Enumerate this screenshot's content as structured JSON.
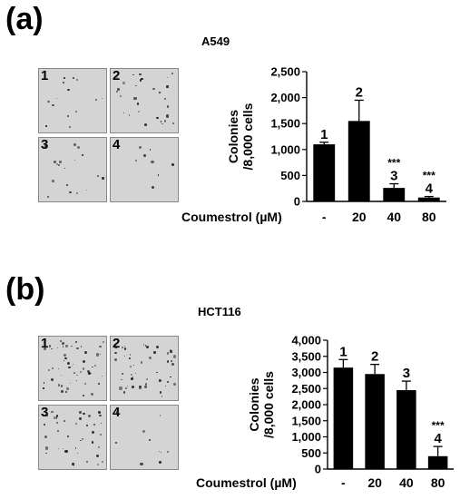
{
  "panels": [
    {
      "label": "(a)",
      "cell_line": "A549",
      "plate_labels": [
        "1",
        "2",
        "3",
        "4"
      ],
      "treatment_label": "Coumestrol (µM)"
    },
    {
      "label": "(b)",
      "cell_line": "HCT116",
      "plate_labels": [
        "1",
        "2",
        "3",
        "4"
      ],
      "treatment_label": "Coumestrol (µM)"
    }
  ],
  "colors": {
    "bar": "#000000",
    "plate": "#d4d4d4"
  },
  "chart_data": [
    {
      "type": "bar",
      "title": "A549",
      "ylabel_lines": [
        "Colonies",
        "/8,000 cells"
      ],
      "xlabel": "Coumestrol (µM)",
      "categories": [
        "-",
        "20",
        "40",
        "80"
      ],
      "values": [
        1100,
        1550,
        260,
        75
      ],
      "errors": [
        40,
        400,
        80,
        20
      ],
      "bar_labels": [
        "1",
        "2",
        "3",
        "4"
      ],
      "significance": [
        "",
        "",
        "***",
        "***"
      ],
      "ylim": [
        0,
        2500
      ],
      "yticks": [
        0,
        500,
        1000,
        1500,
        2000,
        2500
      ],
      "ytick_labels": [
        "0",
        "500",
        "1,000",
        "1,500",
        "2,000",
        "2,500"
      ]
    },
    {
      "type": "bar",
      "title": "HCT116",
      "ylabel_lines": [
        "Colonies",
        "/8,000 cells"
      ],
      "xlabel": "Coumestrol (µM)",
      "categories": [
        "-",
        "20",
        "40",
        "80"
      ],
      "values": [
        3150,
        2950,
        2450,
        400
      ],
      "errors": [
        250,
        300,
        280,
        300
      ],
      "bar_labels": [
        "1",
        "2",
        "3",
        "4"
      ],
      "significance": [
        "",
        "",
        "",
        "***"
      ],
      "ylim": [
        0,
        4000
      ],
      "yticks": [
        0,
        500,
        1000,
        1500,
        2000,
        2500,
        3000,
        3500,
        4000
      ],
      "ytick_labels": [
        "0",
        "500",
        "1,000",
        "1,500",
        "2,000",
        "2,500",
        "3,000",
        "3,500",
        "4,000"
      ]
    }
  ]
}
